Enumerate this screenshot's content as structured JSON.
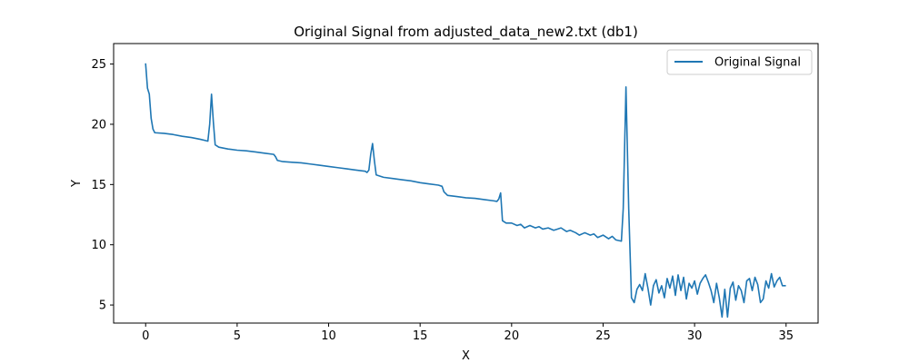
{
  "chart_data": {
    "type": "line",
    "title": "Original Signal from adjusted_data_new2.txt (db1)",
    "xlabel": "X",
    "ylabel": "Y",
    "xlim": [
      -1.75,
      36.75
    ],
    "ylim": [
      3.5,
      26.7
    ],
    "xticks": [
      0,
      5,
      10,
      15,
      20,
      25,
      30,
      35
    ],
    "yticks": [
      5,
      10,
      15,
      20,
      25
    ],
    "grid": false,
    "legend": {
      "position": "top-right"
    },
    "series": [
      {
        "name": "Original Signal",
        "color": "#1f77b4",
        "points": [
          [
            0.0,
            25.0
          ],
          [
            0.1,
            23.0
          ],
          [
            0.2,
            22.5
          ],
          [
            0.3,
            20.5
          ],
          [
            0.4,
            19.6
          ],
          [
            0.5,
            19.3
          ],
          [
            1.0,
            19.25
          ],
          [
            1.5,
            19.15
          ],
          [
            2.0,
            19.0
          ],
          [
            2.5,
            18.9
          ],
          [
            3.0,
            18.75
          ],
          [
            3.4,
            18.6
          ],
          [
            3.5,
            20.0
          ],
          [
            3.6,
            22.5
          ],
          [
            3.7,
            20.2
          ],
          [
            3.8,
            18.3
          ],
          [
            4.0,
            18.1
          ],
          [
            4.5,
            17.95
          ],
          [
            5.0,
            17.85
          ],
          [
            5.5,
            17.8
          ],
          [
            6.0,
            17.7
          ],
          [
            6.5,
            17.6
          ],
          [
            7.0,
            17.5
          ],
          [
            7.1,
            17.3
          ],
          [
            7.2,
            17.0
          ],
          [
            7.5,
            16.9
          ],
          [
            8.0,
            16.85
          ],
          [
            8.5,
            16.8
          ],
          [
            9.0,
            16.7
          ],
          [
            9.5,
            16.6
          ],
          [
            10.0,
            16.5
          ],
          [
            10.5,
            16.4
          ],
          [
            11.0,
            16.3
          ],
          [
            11.5,
            16.2
          ],
          [
            12.0,
            16.1
          ],
          [
            12.1,
            16.0
          ],
          [
            12.2,
            16.2
          ],
          [
            12.3,
            17.5
          ],
          [
            12.4,
            18.4
          ],
          [
            12.5,
            17.0
          ],
          [
            12.6,
            15.8
          ],
          [
            13.0,
            15.6
          ],
          [
            13.5,
            15.5
          ],
          [
            14.0,
            15.4
          ],
          [
            14.5,
            15.3
          ],
          [
            15.0,
            15.15
          ],
          [
            15.5,
            15.05
          ],
          [
            16.0,
            14.95
          ],
          [
            16.2,
            14.85
          ],
          [
            16.3,
            14.4
          ],
          [
            16.5,
            14.1
          ],
          [
            17.0,
            14.0
          ],
          [
            17.5,
            13.9
          ],
          [
            18.0,
            13.85
          ],
          [
            18.5,
            13.75
          ],
          [
            19.0,
            13.65
          ],
          [
            19.2,
            13.6
          ],
          [
            19.3,
            13.8
          ],
          [
            19.4,
            14.3
          ],
          [
            19.5,
            12.0
          ],
          [
            19.7,
            11.8
          ],
          [
            20.0,
            11.8
          ],
          [
            20.3,
            11.6
          ],
          [
            20.5,
            11.7
          ],
          [
            20.7,
            11.4
          ],
          [
            21.0,
            11.6
          ],
          [
            21.3,
            11.4
          ],
          [
            21.5,
            11.5
          ],
          [
            21.7,
            11.3
          ],
          [
            22.0,
            11.4
          ],
          [
            22.3,
            11.2
          ],
          [
            22.5,
            11.3
          ],
          [
            22.7,
            11.4
          ],
          [
            23.0,
            11.1
          ],
          [
            23.2,
            11.2
          ],
          [
            23.5,
            11.0
          ],
          [
            23.7,
            10.8
          ],
          [
            24.0,
            11.0
          ],
          [
            24.3,
            10.8
          ],
          [
            24.5,
            10.9
          ],
          [
            24.7,
            10.6
          ],
          [
            25.0,
            10.8
          ],
          [
            25.3,
            10.5
          ],
          [
            25.5,
            10.7
          ],
          [
            25.7,
            10.4
          ],
          [
            26.0,
            10.3
          ],
          [
            26.1,
            13.0
          ],
          [
            26.25,
            23.1
          ],
          [
            26.4,
            13.0
          ],
          [
            26.55,
            5.6
          ],
          [
            26.7,
            5.2
          ],
          [
            26.85,
            6.3
          ],
          [
            27.0,
            6.7
          ],
          [
            27.15,
            6.2
          ],
          [
            27.3,
            7.6
          ],
          [
            27.45,
            6.4
          ],
          [
            27.6,
            5.0
          ],
          [
            27.75,
            6.6
          ],
          [
            27.9,
            7.1
          ],
          [
            28.05,
            6.0
          ],
          [
            28.2,
            6.6
          ],
          [
            28.35,
            5.6
          ],
          [
            28.5,
            7.2
          ],
          [
            28.65,
            6.4
          ],
          [
            28.8,
            7.4
          ],
          [
            28.95,
            5.8
          ],
          [
            29.1,
            7.5
          ],
          [
            29.25,
            6.2
          ],
          [
            29.4,
            7.3
          ],
          [
            29.55,
            5.5
          ],
          [
            29.7,
            6.8
          ],
          [
            29.85,
            6.4
          ],
          [
            30.0,
            7.0
          ],
          [
            30.15,
            5.9
          ],
          [
            30.3,
            6.8
          ],
          [
            30.45,
            7.2
          ],
          [
            30.6,
            7.5
          ],
          [
            30.75,
            6.9
          ],
          [
            30.9,
            6.2
          ],
          [
            31.05,
            5.2
          ],
          [
            31.2,
            6.8
          ],
          [
            31.35,
            5.6
          ],
          [
            31.5,
            4.0
          ],
          [
            31.65,
            6.3
          ],
          [
            31.8,
            4.0
          ],
          [
            31.95,
            6.4
          ],
          [
            32.1,
            6.9
          ],
          [
            32.25,
            5.4
          ],
          [
            32.4,
            6.6
          ],
          [
            32.55,
            6.2
          ],
          [
            32.7,
            5.2
          ],
          [
            32.85,
            7.0
          ],
          [
            33.0,
            7.2
          ],
          [
            33.15,
            6.2
          ],
          [
            33.3,
            7.3
          ],
          [
            33.45,
            6.7
          ],
          [
            33.6,
            5.2
          ],
          [
            33.75,
            5.5
          ],
          [
            33.9,
            7.0
          ],
          [
            34.05,
            6.4
          ],
          [
            34.2,
            7.6
          ],
          [
            34.35,
            6.5
          ],
          [
            34.5,
            7.0
          ],
          [
            34.65,
            7.3
          ],
          [
            34.8,
            6.6
          ],
          [
            34.95,
            6.6
          ]
        ]
      }
    ]
  }
}
